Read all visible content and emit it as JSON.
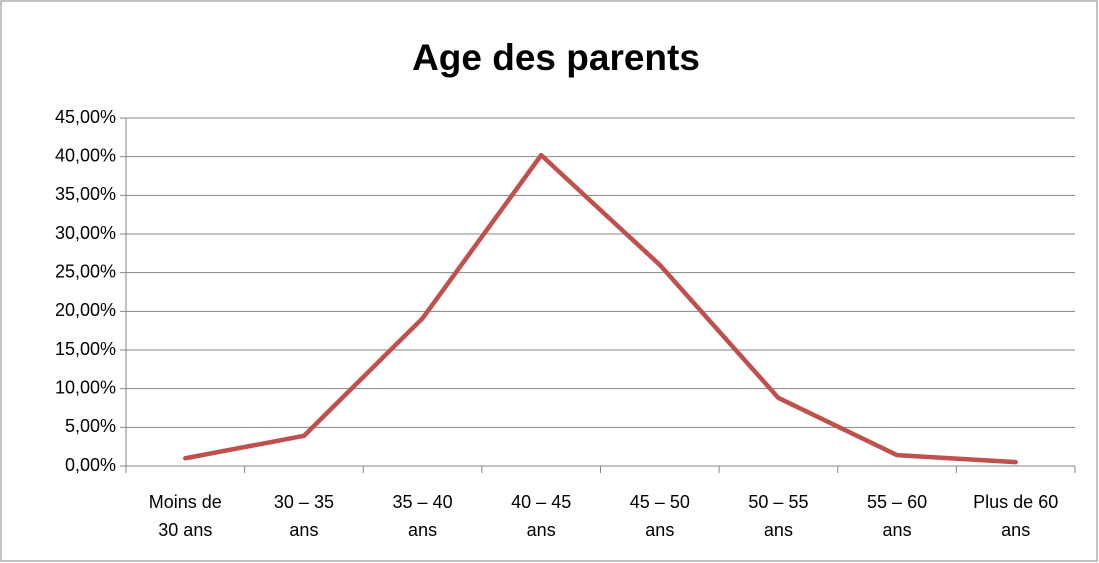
{
  "chart_data": {
    "type": "line",
    "title": "Age des parents",
    "categories": [
      "Moins de 30 ans",
      "30 – 35 ans",
      "35 – 40 ans",
      "40 – 45 ans",
      "45 – 50 ans",
      "50 – 55 ans",
      "55 – 60 ans",
      "Plus de 60 ans"
    ],
    "values": [
      1.0,
      3.9,
      19.1,
      40.2,
      26.0,
      8.8,
      1.4,
      0.5
    ],
    "color": "#c0504d",
    "ylim": [
      0,
      45
    ],
    "yticks": [
      {
        "value": 0,
        "label": "0,00%"
      },
      {
        "value": 5,
        "label": "5,00%"
      },
      {
        "value": 10,
        "label": "10,00%"
      },
      {
        "value": 15,
        "label": "15,00%"
      },
      {
        "value": 20,
        "label": "20,00%"
      },
      {
        "value": 25,
        "label": "25,00%"
      },
      {
        "value": 30,
        "label": "30,00%"
      },
      {
        "value": 35,
        "label": "35,00%"
      },
      {
        "value": 40,
        "label": "40,00%"
      },
      {
        "value": 45,
        "label": "45,00%"
      }
    ],
    "grid": true
  }
}
